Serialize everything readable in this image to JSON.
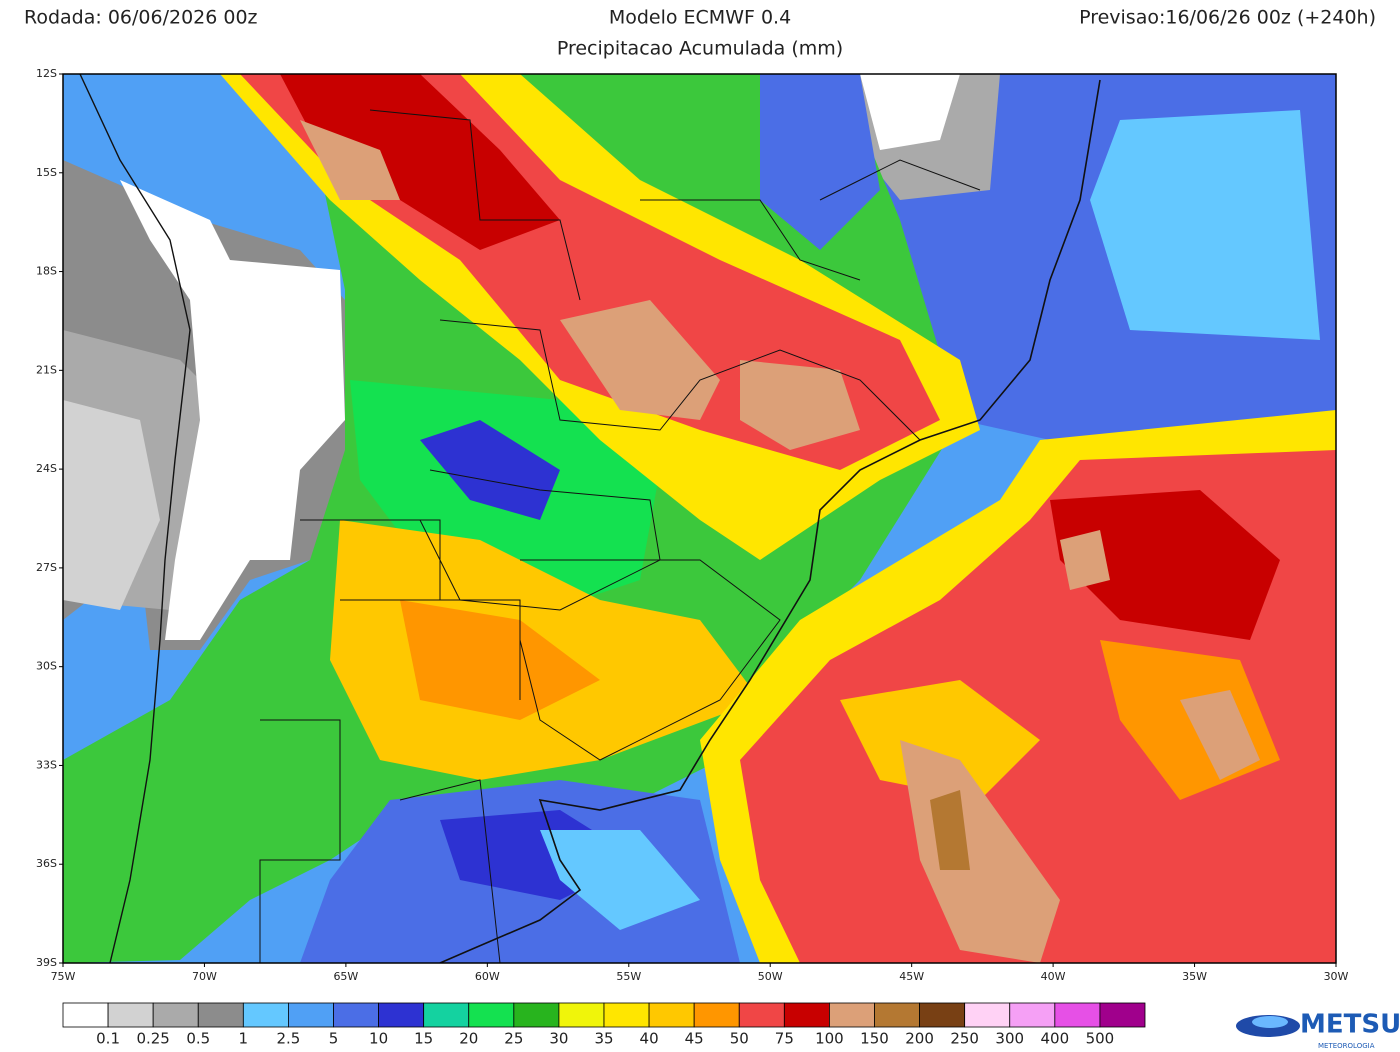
{
  "header": {
    "run": "Rodada: 06/06/2026 00z",
    "model": "Modelo ECMWF 0.4",
    "forecast": "Previsao:16/06/26 00z (+240h)",
    "subtitle": "Precipitacao Acumulada (mm)"
  },
  "map": {
    "lat_labels": [
      "12S",
      "15S",
      "18S",
      "21S",
      "24S",
      "27S",
      "30S",
      "33S",
      "36S",
      "39S"
    ],
    "lon_labels": [
      "75W",
      "70W",
      "65W",
      "60W",
      "55W",
      "50W",
      "45W",
      "40W",
      "35W",
      "30W"
    ]
  },
  "legend": {
    "colors": [
      "#ffffff",
      "#d2d2d2",
      "#aaaaaa",
      "#8c8c8c",
      "#64c8ff",
      "#50a0f5",
      "#4b6ee6",
      "#2d32d2",
      "#14d2a0",
      "#14e150",
      "#28b41e",
      "#f0f50a",
      "#ffe600",
      "#ffc800",
      "#ff9600",
      "#f04646",
      "#c80000",
      "#dca078",
      "#b47832",
      "#784014",
      "#ffd2f5",
      "#f5a0f5",
      "#e650e6",
      "#a0008c"
    ],
    "labels": [
      "0.1",
      "0.25",
      "0.5",
      "1",
      "2.5",
      "5",
      "10",
      "15",
      "20",
      "25",
      "30",
      "35",
      "40",
      "45",
      "50",
      "75",
      "100",
      "150",
      "200",
      "250",
      "300",
      "400",
      "500"
    ]
  },
  "logo": {
    "name": "METSUL",
    "tagline": "METEOROLOGIA"
  }
}
